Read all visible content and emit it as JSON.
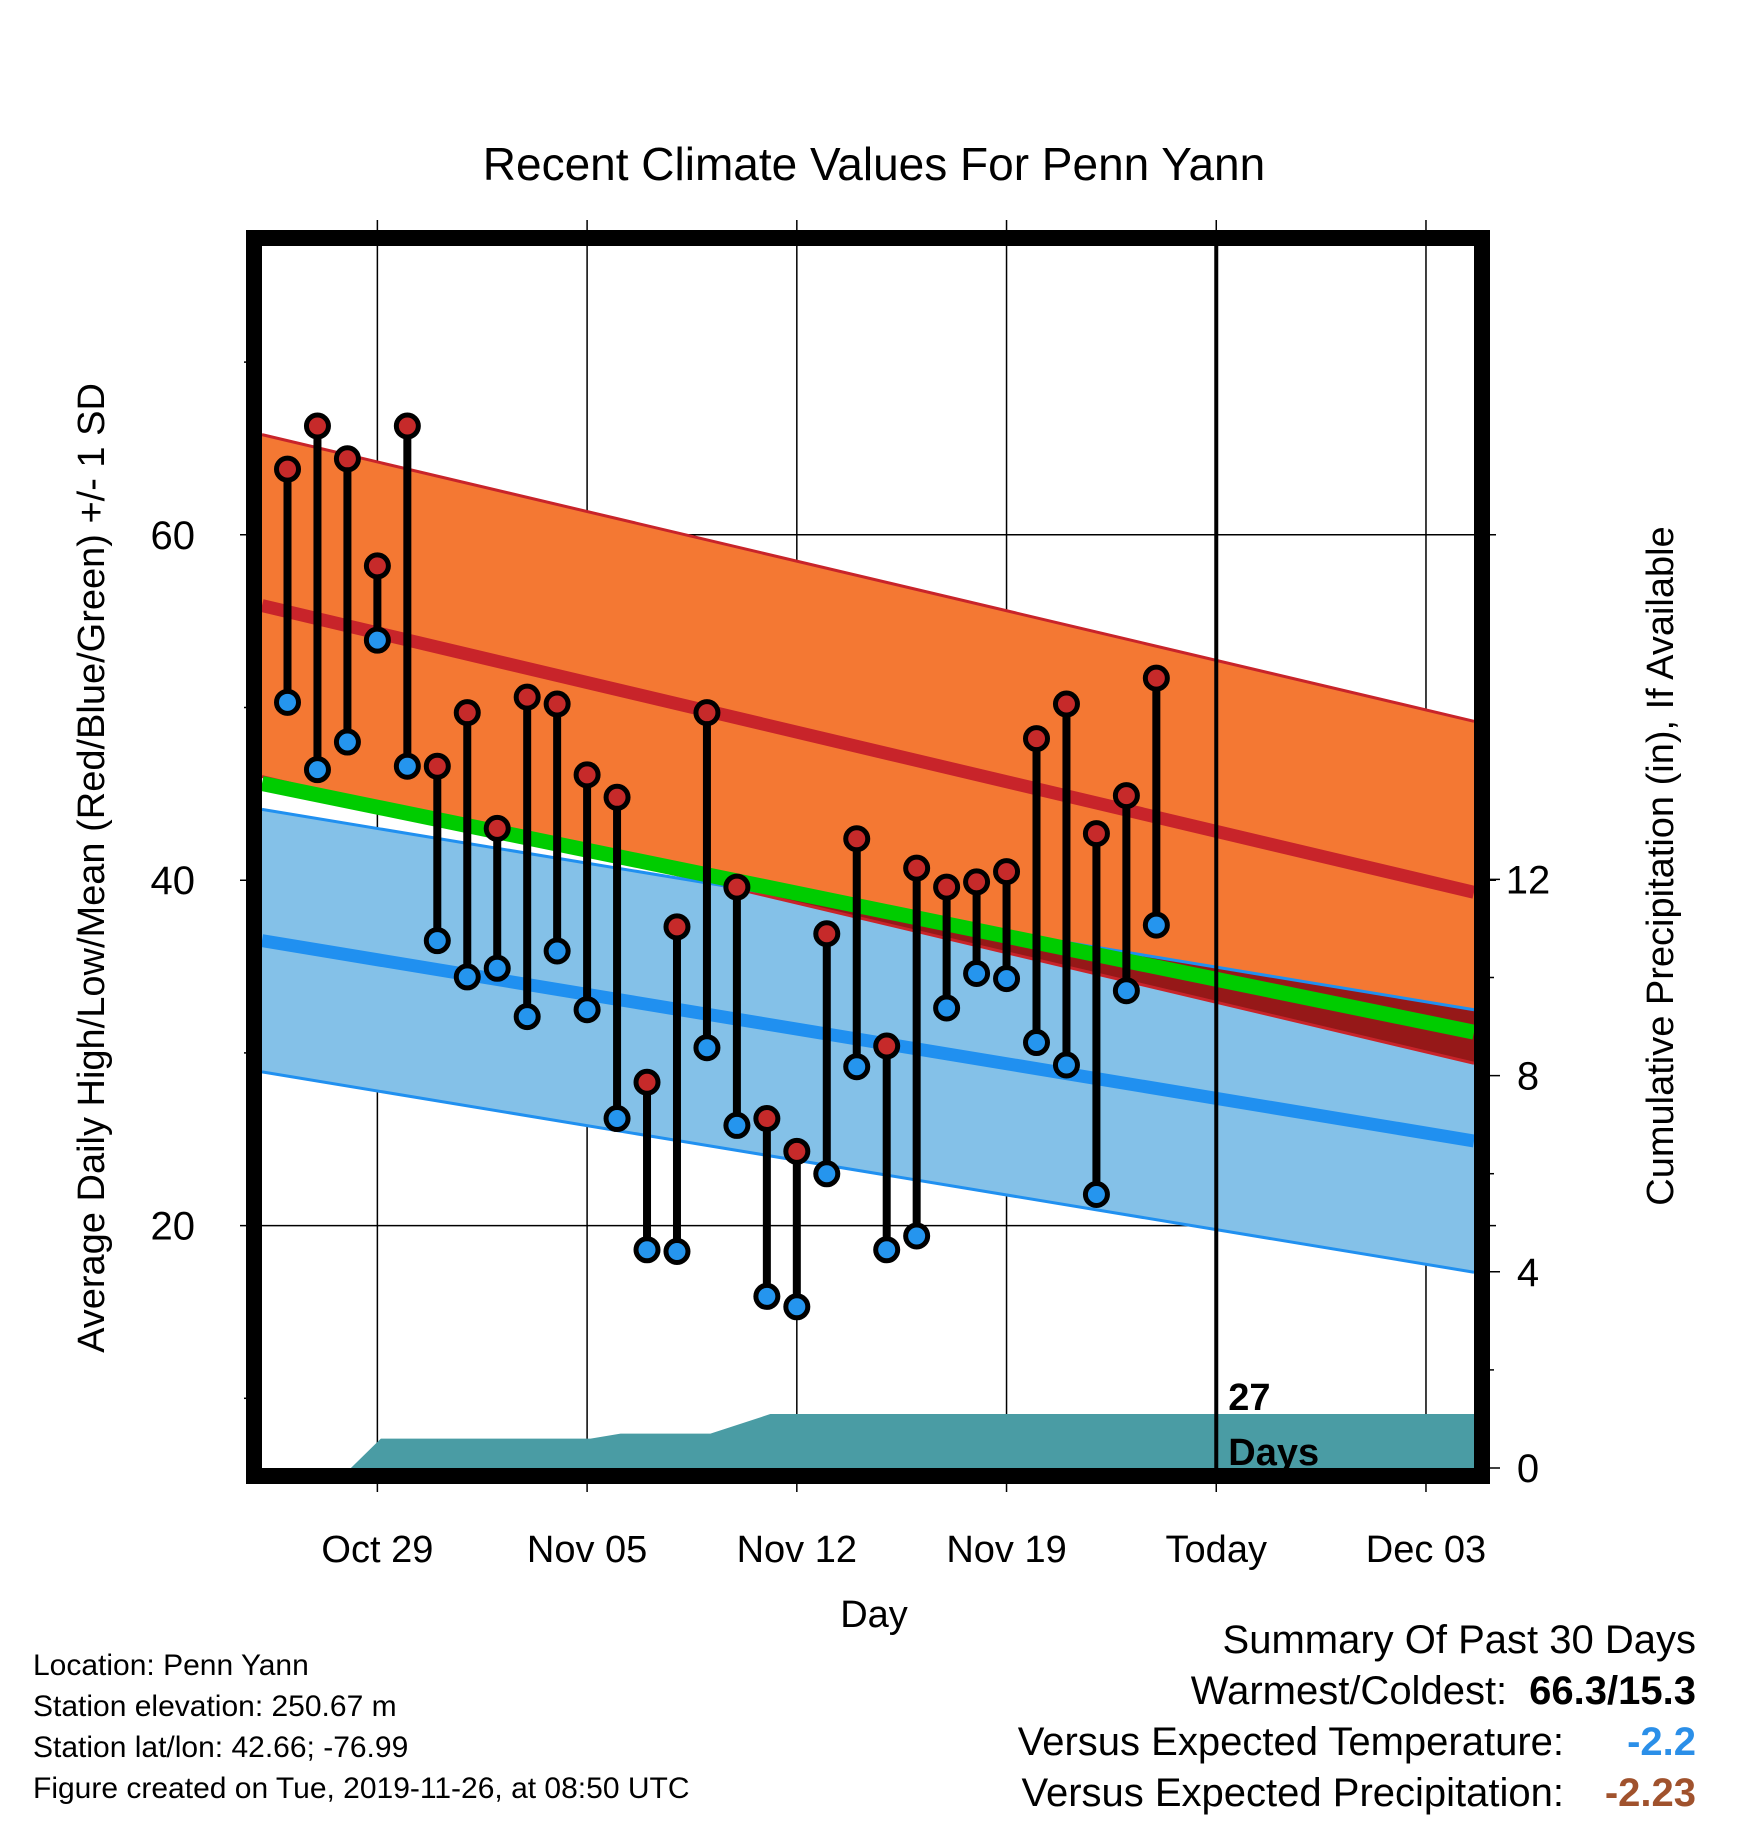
{
  "chart_data": {
    "type": "line",
    "title": "Recent Climate Values For Penn Yann",
    "xlabel": "Day",
    "ylabel": "Average Daily High/Low/Mean (Red/Blue/Green) +/- 1 SD",
    "y2label": "Cumulative Precipitation (in), If Available",
    "x_tick_labels": [
      "Oct 29",
      "Nov 05",
      "Nov 12",
      "Nov 19",
      "Today",
      "Dec 03"
    ],
    "y_ticks": [
      20,
      40,
      60
    ],
    "y2_ticks": [
      0,
      4,
      8,
      12
    ],
    "today_label": "27\nDays",
    "daily_observations": {
      "high": [
        63.8,
        66.3,
        64.4,
        58.2,
        66.3,
        46.6,
        49.7,
        43.0,
        50.6,
        50.2,
        46.1,
        44.8,
        28.3,
        37.3,
        49.7,
        39.6,
        26.2,
        24.3,
        36.9,
        42.4,
        30.4,
        40.7,
        39.6,
        39.9,
        40.5,
        48.2,
        50.2,
        42.7,
        44.9,
        51.7
      ],
      "low": [
        50.3,
        46.4,
        48.0,
        53.9,
        46.6,
        36.5,
        34.4,
        34.9,
        32.1,
        35.9,
        32.5,
        26.2,
        18.6,
        18.5,
        30.3,
        25.8,
        15.9,
        15.3,
        23.0,
        29.2,
        18.6,
        19.4,
        32.6,
        34.6,
        34.3,
        30.6,
        29.3,
        21.8,
        33.6,
        37.4
      ]
    },
    "normals": {
      "high_mean_start": 55.9,
      "high_mean_end": 39.3,
      "high_sd": 9.9,
      "low_mean_start": 36.5,
      "low_mean_end": 24.9,
      "low_sd": 7.6,
      "mean_start": 45.6,
      "mean_end": 31.2
    },
    "cumulative_precipitation": [
      0.0,
      0.0,
      0.0,
      0.0,
      0.6,
      0.6,
      0.6,
      0.6,
      0.6,
      0.6,
      0.6,
      0.6,
      0.7,
      0.7,
      0.7,
      0.7,
      0.9,
      1.1,
      1.1,
      1.1,
      1.1,
      1.1,
      1.1,
      1.1,
      1.1,
      1.1,
      1.1,
      1.1,
      1.1,
      1.1,
      1.1
    ],
    "colors": {
      "high": "#c8242a",
      "high_band": "#f47833",
      "low": "#2090f0",
      "low_band": "#84c1e8",
      "mean": "#00cc00",
      "overlap": "#961818",
      "precip": "#4a9ca4",
      "dot_high": "#c62a2a",
      "dot_low": "#2595ee"
    }
  },
  "info": {
    "location": "Location: Penn Yann",
    "elevation": "Station elevation: 250.67 m",
    "latlon": "Station lat/lon: 42.66; -76.99",
    "created": "Figure created on Tue, 2019-11-26, at 08:50 UTC"
  },
  "summary": {
    "title": "Summary Of Past 30 Days",
    "warmest_label": "Warmest/Coldest:",
    "warmest_value": "66.3/15.3",
    "temp_label": "Versus Expected Temperature:",
    "temp_value": "-2.2",
    "temp_color": "#2b8fe8",
    "precip_label": "Versus Expected Precipitation:",
    "precip_value": "-2.23",
    "precip_color": "#a0522d"
  }
}
